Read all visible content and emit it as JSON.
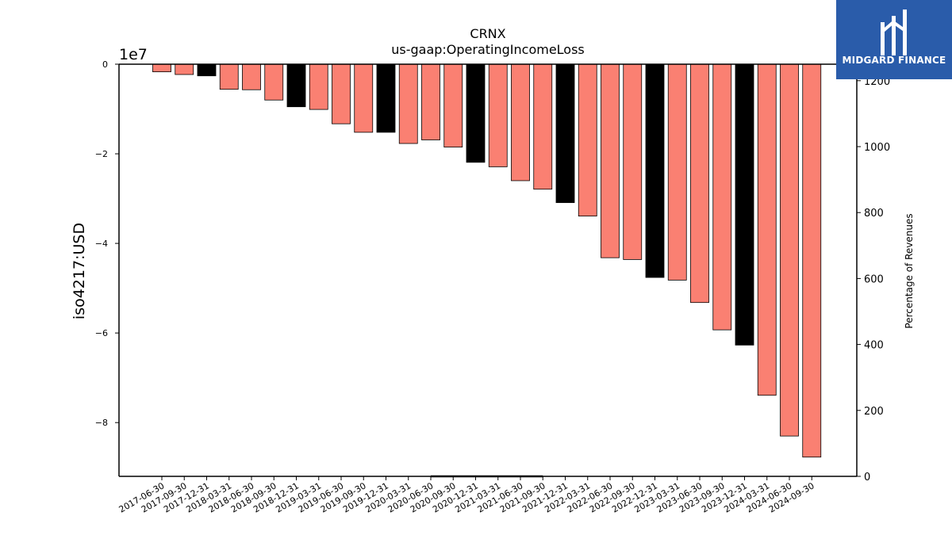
{
  "chart_data": {
    "type": "bar",
    "title": "CRNX",
    "subtitle": "us-gaap:OperatingIncomeLoss",
    "ylabel": "iso4217:USD",
    "y_offset_label": "1e7",
    "y2label": "Percentage of Revenues",
    "ylim": [
      -9.2,
      0
    ],
    "y_unit_multiplier": 10000000,
    "yticks": [
      0,
      -2,
      -4,
      -6,
      -8
    ],
    "yticklabels": [
      "0",
      "−2",
      "−4",
      "−6",
      "−8"
    ],
    "y2lim": [
      0,
      1250
    ],
    "y2ticks": [
      0,
      200,
      400,
      600,
      800,
      1000,
      1200
    ],
    "y2ticklabels": [
      "0",
      "200",
      "400",
      "600",
      "800",
      "1000",
      "1200"
    ],
    "categories": [
      "2017-06-30",
      "2017-09-30",
      "2017-12-31",
      "2018-03-31",
      "2018-06-30",
      "2018-09-30",
      "2018-12-31",
      "2019-03-31",
      "2019-06-30",
      "2019-09-30",
      "2019-12-31",
      "2020-03-31",
      "2020-06-30",
      "2020-09-30",
      "2020-12-31",
      "2021-03-31",
      "2021-06-30",
      "2021-09-30",
      "2021-12-31",
      "2022-03-31",
      "2022-06-30",
      "2022-09-30",
      "2022-12-31",
      "2023-03-31",
      "2023-06-30",
      "2023-09-30",
      "2023-12-31",
      "2024-03-31",
      "2024-06-30",
      "2024-09-30"
    ],
    "values": [
      -0.17,
      -0.23,
      -0.26,
      -0.56,
      -0.57,
      -0.8,
      -0.95,
      -1.01,
      -1.33,
      -1.52,
      -1.52,
      -1.77,
      -1.69,
      -1.85,
      -2.19,
      -2.29,
      -2.6,
      -2.79,
      -3.09,
      -3.39,
      -4.32,
      -4.36,
      -4.76,
      -4.82,
      -5.32,
      -5.93,
      -6.27,
      -7.39,
      -8.3,
      -8.77
    ],
    "highlight": [
      false,
      false,
      true,
      false,
      false,
      false,
      true,
      false,
      false,
      false,
      true,
      false,
      false,
      false,
      true,
      false,
      false,
      false,
      true,
      false,
      false,
      false,
      true,
      false,
      false,
      false,
      true,
      false,
      false,
      false
    ],
    "pct_of_revenues": [
      {
        "x": "2020-06-30",
        "value": 0
      },
      {
        "x": "2021-09-30",
        "value": 0
      }
    ],
    "colors": {
      "bar": "#fa8072",
      "highlight_bar": "#000000",
      "edge": "#000000",
      "pct_line": "#000000"
    },
    "grid": false,
    "legend": "none"
  },
  "logo": {
    "brand": "MIDGARD FINANCE"
  }
}
